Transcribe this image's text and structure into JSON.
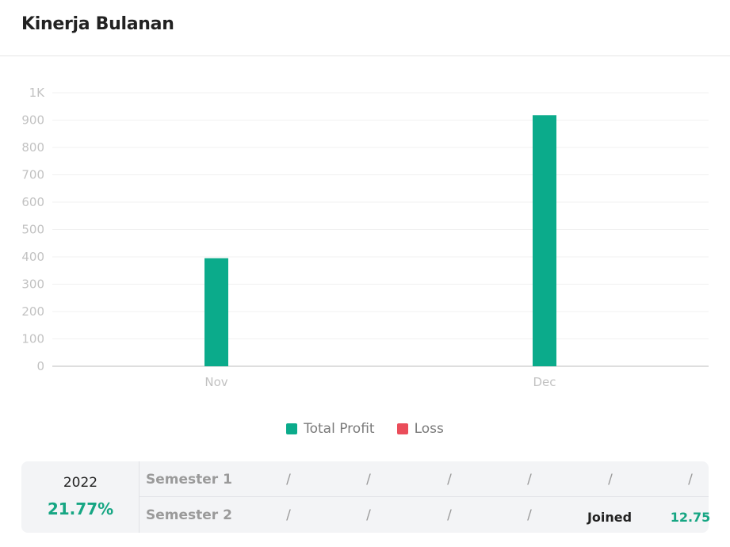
{
  "card": {
    "title": "Kinerja Bulanan"
  },
  "chart_data": {
    "type": "bar",
    "categories": [
      "Nov",
      "Dec"
    ],
    "series": [
      {
        "name": "Total Profit",
        "color": "#0bab8b",
        "values": [
          395,
          918
        ]
      },
      {
        "name": "Loss",
        "color": "#ea4d5a",
        "values": [
          0,
          0
        ]
      }
    ],
    "yticks": [
      "0",
      "100",
      "200",
      "300",
      "400",
      "500",
      "600",
      "700",
      "800",
      "900",
      "1K"
    ],
    "ylim": [
      0,
      1000
    ],
    "grid": true,
    "legend": "bottom-center"
  },
  "legend": [
    {
      "label": "Total Profit",
      "color": "#0bab8b"
    },
    {
      "label": "Loss",
      "color": "#ea4d5a"
    }
  ],
  "summary": {
    "year": "2022",
    "percent": "21.77%",
    "semester1": {
      "label": "Semester 1",
      "cells": [
        "/",
        "/",
        "/",
        "/",
        "/",
        "/"
      ]
    },
    "semester2": {
      "label": "Semester 2",
      "cells": [
        "/",
        "/",
        "/",
        "/"
      ],
      "joined": "Joined",
      "score": "12.75"
    }
  }
}
